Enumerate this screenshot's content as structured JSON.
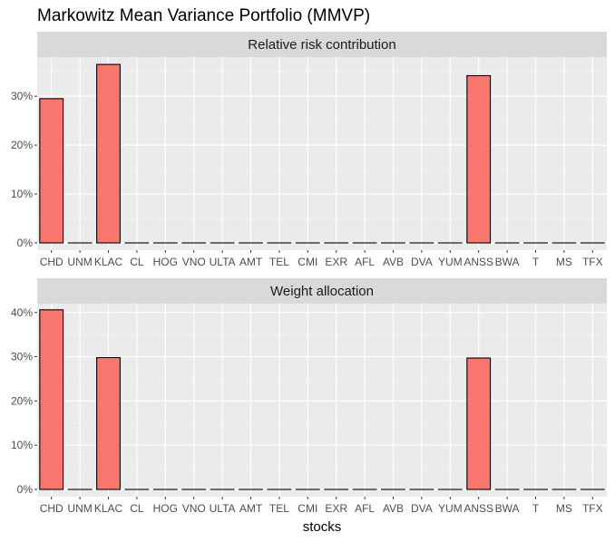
{
  "chart_data": {
    "type": "bar",
    "title": "Markowitz Mean Variance Portfolio (MMVP)",
    "xlabel": "stocks",
    "ylabel": "",
    "categories": [
      "CHD",
      "UNM",
      "KLAC",
      "CL",
      "HOG",
      "VNO",
      "ULTA",
      "AMT",
      "TEL",
      "CMI",
      "EXR",
      "AFL",
      "AVB",
      "DVA",
      "YUM",
      "ANSS",
      "BWA",
      "T",
      "MS",
      "TFX"
    ],
    "bar_color": "#F8766D",
    "bar_outline": "#000000",
    "panel_bg": "#EBEBEB",
    "strip_bg": "#D9D9D9",
    "grid": true,
    "panels": [
      {
        "strip": "Relative risk contribution",
        "ylim": [
          0,
          38
        ],
        "yticks": [
          0,
          10,
          20,
          30
        ],
        "ytick_labels": [
          "0%",
          "10%",
          "20%",
          "30%"
        ],
        "values": [
          29.5,
          0,
          36.5,
          0,
          0,
          0,
          0,
          0,
          0,
          0,
          0,
          0,
          0,
          0,
          0,
          34.2,
          0,
          0,
          0,
          0
        ]
      },
      {
        "strip": "Weight allocation",
        "ylim": [
          0,
          42
        ],
        "yticks": [
          0,
          10,
          20,
          30,
          40
        ],
        "ytick_labels": [
          "0%",
          "10%",
          "20%",
          "30%",
          "40%"
        ],
        "values": [
          40.6,
          0,
          29.8,
          0,
          0,
          0,
          0,
          0,
          0,
          0,
          0,
          0,
          0,
          0,
          0,
          29.7,
          0,
          0,
          0,
          0
        ]
      }
    ]
  }
}
